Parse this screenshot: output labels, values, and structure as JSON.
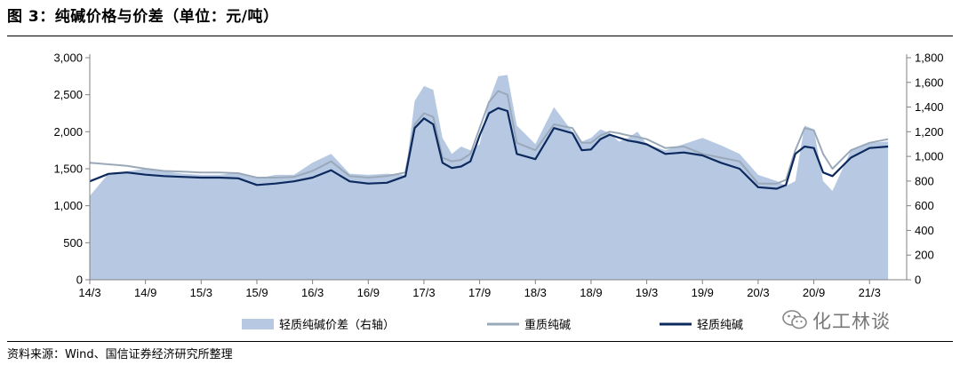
{
  "title": "图 3：纯碱价格与价差（单位：元/吨）",
  "source": "资料来源：Wind、国信证券经济研究所整理",
  "watermark": "化工林谈",
  "watermark_icon": "wechat-icon",
  "chart_data": {
    "type": "line+area",
    "x_ticks": [
      "14/3",
      "14/9",
      "15/3",
      "15/9",
      "16/3",
      "16/9",
      "17/3",
      "17/9",
      "18/3",
      "18/9",
      "19/3",
      "19/9",
      "20/3",
      "20/9",
      "21/3"
    ],
    "y_left": {
      "ticks": [
        "0",
        "500",
        "1,000",
        "1,500",
        "2,000",
        "2,500",
        "3,000"
      ],
      "range": [
        0,
        3000
      ]
    },
    "y_right": {
      "ticks": [
        "0",
        "200",
        "400",
        "600",
        "800",
        "1,000",
        "1,200",
        "1,400",
        "1,600",
        "1,800"
      ],
      "range": [
        0,
        1800
      ]
    },
    "grid": false,
    "legend_position": "bottom",
    "x_months": [
      0,
      2,
      4,
      6,
      8,
      10,
      12,
      14,
      16,
      18,
      20,
      22,
      24,
      26,
      28,
      30,
      32,
      34,
      35,
      36,
      37,
      38,
      39,
      40,
      41,
      42,
      43,
      44,
      45,
      46,
      48,
      50,
      52,
      53,
      54,
      55,
      56,
      57,
      58,
      59,
      60,
      62,
      64,
      66,
      68,
      70,
      72,
      74,
      75,
      76,
      77,
      78,
      79,
      80,
      82,
      84,
      86
    ],
    "series": [
      {
        "name": "轻质纯碱价差（右轴）",
        "axis": "right",
        "color": "#b7c9e2",
        "kind": "area",
        "values": [
          680,
          860,
          880,
          900,
          880,
          860,
          850,
          850,
          870,
          820,
          850,
          850,
          950,
          1020,
          860,
          850,
          860,
          850,
          1450,
          1570,
          1540,
          1150,
          1020,
          1080,
          1050,
          1100,
          1450,
          1650,
          1660,
          1250,
          1100,
          1400,
          1200,
          1120,
          1150,
          1220,
          1190,
          1120,
          1150,
          1200,
          1100,
          1050,
          1100,
          1150,
          1090,
          1020,
          850,
          800,
          760,
          800,
          1250,
          1220,
          800,
          720,
          1050,
          1110,
          1120
        ]
      },
      {
        "name": "重质纯碱",
        "axis": "left",
        "color": "#9aa9b9",
        "kind": "line",
        "values": [
          1580,
          1560,
          1540,
          1500,
          1470,
          1460,
          1450,
          1450,
          1440,
          1380,
          1380,
          1390,
          1470,
          1600,
          1400,
          1380,
          1400,
          1450,
          2100,
          2250,
          2200,
          1650,
          1600,
          1620,
          1700,
          2050,
          2400,
          2550,
          2500,
          1850,
          1750,
          2100,
          2050,
          1850,
          1850,
          1950,
          2000,
          1980,
          1950,
          1930,
          1900,
          1780,
          1800,
          1700,
          1650,
          1600,
          1300,
          1300,
          1350,
          1750,
          2050,
          2020,
          1700,
          1500,
          1750,
          1850,
          1900
        ]
      },
      {
        "name": "轻质纯碱",
        "axis": "left",
        "color": "#0d2a5e",
        "kind": "line",
        "values": [
          1330,
          1430,
          1450,
          1420,
          1400,
          1390,
          1380,
          1380,
          1370,
          1280,
          1300,
          1330,
          1380,
          1480,
          1330,
          1300,
          1310,
          1400,
          2050,
          2180,
          2100,
          1580,
          1510,
          1530,
          1600,
          1950,
          2250,
          2320,
          2280,
          1700,
          1630,
          2050,
          1980,
          1750,
          1760,
          1900,
          1960,
          1920,
          1880,
          1860,
          1830,
          1700,
          1720,
          1680,
          1580,
          1500,
          1250,
          1230,
          1280,
          1700,
          1800,
          1780,
          1450,
          1400,
          1650,
          1780,
          1800
        ]
      }
    ]
  }
}
